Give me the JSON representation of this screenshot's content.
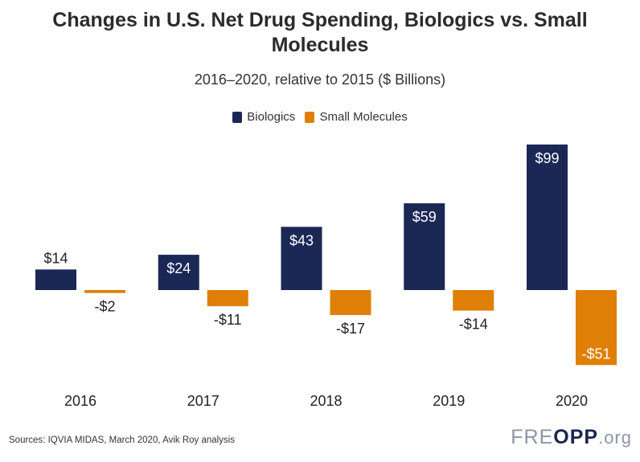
{
  "chart_data": {
    "type": "bar",
    "title": "Changes in U.S. Net Drug Spending, Biologics vs. Small Molecules",
    "subtitle": "2016–2020, relative to 2015 ($ Billions)",
    "categories": [
      "2016",
      "2017",
      "2018",
      "2019",
      "2020"
    ],
    "series": [
      {
        "name": "Biologics",
        "color": "#1b2755",
        "values": [
          14,
          24,
          43,
          59,
          99
        ],
        "labels": [
          "$14",
          "$24",
          "$43",
          "$59",
          "$99"
        ]
      },
      {
        "name": "Small Molecules",
        "color": "#e07f06",
        "values": [
          -2,
          -11,
          -17,
          -14,
          -51
        ],
        "labels": [
          "-$2",
          "-$11",
          "-$17",
          "-$14",
          "-$51"
        ]
      }
    ],
    "ylim": [
      -51,
      99
    ],
    "grid": false,
    "legend": "top-center"
  },
  "footer": {
    "source": "Sources: IQVIA MIDAS, March 2020, Avik Roy analysis",
    "logo_left": "FRE",
    "logo_mid": "OPP",
    "logo_right": ".org"
  }
}
